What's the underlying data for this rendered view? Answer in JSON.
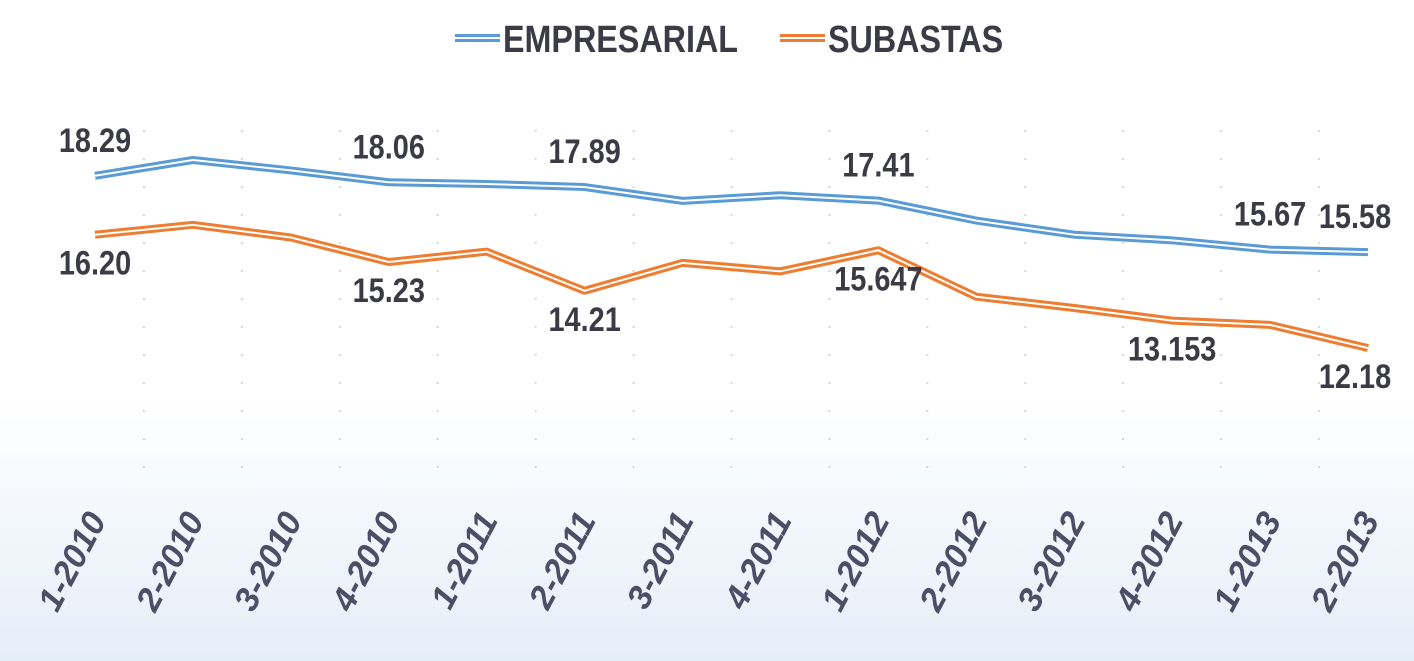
{
  "chart_data": {
    "type": "line",
    "categories": [
      "1-2010",
      "2-2010",
      "3-2010",
      "4-2010",
      "1-2011",
      "2-2011",
      "3-2011",
      "4-2011",
      "1-2012",
      "2-2012",
      "3-2012",
      "4-2012",
      "1-2013",
      "2-2013"
    ],
    "series": [
      {
        "name": "EMPRESARIAL",
        "color": "#5b9bd5",
        "values": [
          18.29,
          18.85,
          18.48,
          18.06,
          18.0,
          17.89,
          17.4,
          17.6,
          17.41,
          16.7,
          16.2,
          16.0,
          15.67,
          15.58
        ],
        "value_labels": [
          "18.29",
          null,
          null,
          "18.06",
          null,
          "17.89",
          null,
          null,
          "17.41",
          null,
          null,
          null,
          "15.67",
          "15.58"
        ]
      },
      {
        "name": "SUBASTAS",
        "color": "#ed7d31",
        "values": [
          16.2,
          16.55,
          16.1,
          15.23,
          15.6,
          14.21,
          15.2,
          14.9,
          15.647,
          14.0,
          13.6,
          13.153,
          13.0,
          12.18
        ],
        "value_labels": [
          "16.20",
          null,
          null,
          "15.23",
          null,
          "14.21",
          null,
          null,
          "15.647",
          null,
          null,
          "13.153",
          null,
          "12.18"
        ]
      }
    ],
    "legend": "top",
    "grid": true
  }
}
